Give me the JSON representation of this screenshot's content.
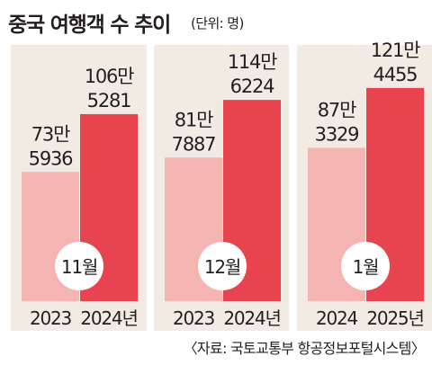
{
  "title": "중국 여행객 수 추이",
  "unit": "(단위: 명)",
  "source": "〈자료: 국토교통부 항공정보포털시스템〉",
  "colors": {
    "panel_bg": "#f2ebe4",
    "prev_bar": "#f4b4b1",
    "curr_bar": "#e8444f",
    "badge_bg": "#ffffff",
    "text": "#231f20"
  },
  "chart_data": {
    "type": "bar",
    "title": "중국 여행객 수 추이",
    "unit": "명",
    "groups": [
      {
        "month_label": "11월",
        "bars": [
          {
            "category": "2023",
            "value": 735936,
            "value_lines": [
              "73만",
              "5936"
            ]
          },
          {
            "category": "2024년",
            "value": 1065281,
            "value_lines": [
              "106만",
              "5281"
            ]
          }
        ]
      },
      {
        "month_label": "12월",
        "bars": [
          {
            "category": "2023",
            "value": 817887,
            "value_lines": [
              "81만",
              "7887"
            ]
          },
          {
            "category": "2024년",
            "value": 1146224,
            "value_lines": [
              "114만",
              "6224"
            ]
          }
        ]
      },
      {
        "month_label": "1월",
        "bars": [
          {
            "category": "2024",
            "value": 873329,
            "value_lines": [
              "87만",
              "3329"
            ]
          },
          {
            "category": "2025년",
            "value": 1214455,
            "value_lines": [
              "121만",
              "4455"
            ]
          }
        ]
      }
    ]
  }
}
